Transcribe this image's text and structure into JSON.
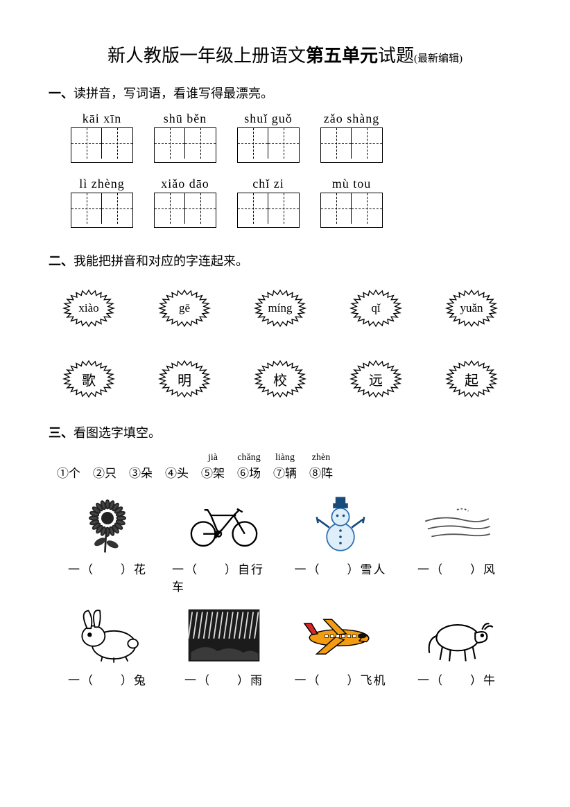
{
  "title": {
    "part1": "新人教版一年级上册语文",
    "part2_bold": "第五单元",
    "part3": "试题",
    "suffix": "(最新编辑)"
  },
  "section1": {
    "num": "一、",
    "heading": "读拼音，写词语，看谁写得最漂亮。",
    "row1": [
      {
        "pinyin": "kāi xīn",
        "cells": 2
      },
      {
        "pinyin": "shū  běn",
        "cells": 2
      },
      {
        "pinyin": "shuǐ guǒ",
        "cells": 2
      },
      {
        "pinyin": "zǎo shàng",
        "cells": 2
      }
    ],
    "row2": [
      {
        "pinyin": "lì  zhèng",
        "cells": 2
      },
      {
        "pinyin": "xiǎo  dāo",
        "cells": 2
      },
      {
        "pinyin": "chǐ  zi",
        "cells": 2
      },
      {
        "pinyin": "mù  tou",
        "cells": 2
      }
    ]
  },
  "section2": {
    "num": "二、",
    "heading": "我能把拼音和对应的字连起来。",
    "pinyins": [
      "xiào",
      "gē",
      "míng",
      "qǐ",
      "yuǎn"
    ],
    "chars": [
      "歌",
      "明",
      "校",
      "远",
      "起"
    ]
  },
  "section3": {
    "num": "三、",
    "heading": "看图选字填空。",
    "options": [
      {
        "num": "①",
        "ruby": "",
        "char": "个"
      },
      {
        "num": "②",
        "ruby": "",
        "char": "只"
      },
      {
        "num": "③",
        "ruby": "",
        "char": "朵"
      },
      {
        "num": "④",
        "ruby": "",
        "char": "头"
      },
      {
        "num": "⑤",
        "ruby": "jià",
        "char": "架"
      },
      {
        "num": "⑥",
        "ruby": "chǎng",
        "char": "场"
      },
      {
        "num": "⑦",
        "ruby": "liàng",
        "char": "辆"
      },
      {
        "num": "⑧",
        "ruby": "zhèn",
        "char": "阵"
      }
    ],
    "row1": [
      {
        "icon": "flower",
        "text": "一（　　）花"
      },
      {
        "icon": "bike",
        "text": "一（　　）自行车"
      },
      {
        "icon": "snowman",
        "text": "一（　　）雪人"
      },
      {
        "icon": "wind",
        "text": "一（　　）风"
      }
    ],
    "row2": [
      {
        "icon": "rabbit",
        "text": "一（　　）兔"
      },
      {
        "icon": "rain",
        "text": "一（　　）雨"
      },
      {
        "icon": "plane",
        "text": "一（　　）飞机"
      },
      {
        "icon": "cow",
        "text": "一（　　）牛"
      }
    ]
  },
  "colors": {
    "ink": "#000000",
    "plane_orange": "#f39c12",
    "plane_red": "#d62828",
    "snow_blue": "#2b6fb3",
    "bg": "#ffffff"
  }
}
